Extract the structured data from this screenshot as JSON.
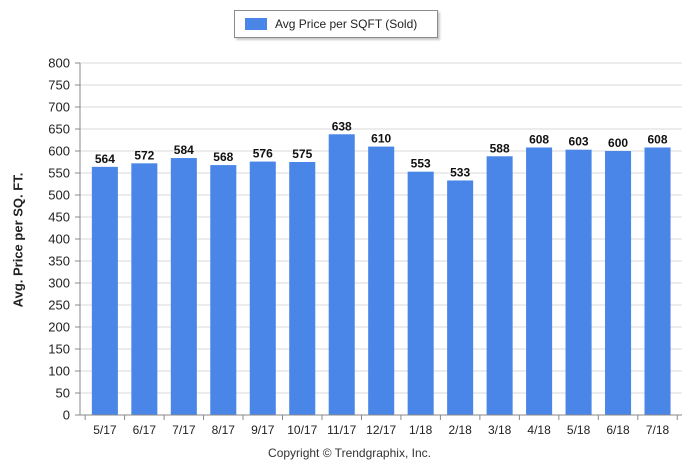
{
  "chart_data": {
    "type": "bar",
    "categories": [
      "5/17",
      "6/17",
      "7/17",
      "8/17",
      "9/17",
      "10/17",
      "11/17",
      "12/17",
      "1/18",
      "2/18",
      "3/18",
      "4/18",
      "5/18",
      "6/18",
      "7/18"
    ],
    "series": [
      {
        "name": "Avg Price per SQFT (Sold)",
        "values": [
          564,
          572,
          584,
          568,
          576,
          575,
          638,
          610,
          553,
          533,
          588,
          608,
          603,
          600,
          608
        ]
      }
    ],
    "ylabel": "Avg. Price per SQ. FT.",
    "ylim": [
      0,
      800
    ],
    "yticks": [
      0,
      50,
      100,
      150,
      200,
      250,
      300,
      350,
      400,
      450,
      500,
      550,
      600,
      650,
      700,
      750,
      800
    ],
    "grid": true,
    "legend": "top-center",
    "bar_color": "#4a86e8",
    "show_data_labels": true
  },
  "footer": {
    "copyright": "Copyright © Trendgraphix, Inc."
  }
}
